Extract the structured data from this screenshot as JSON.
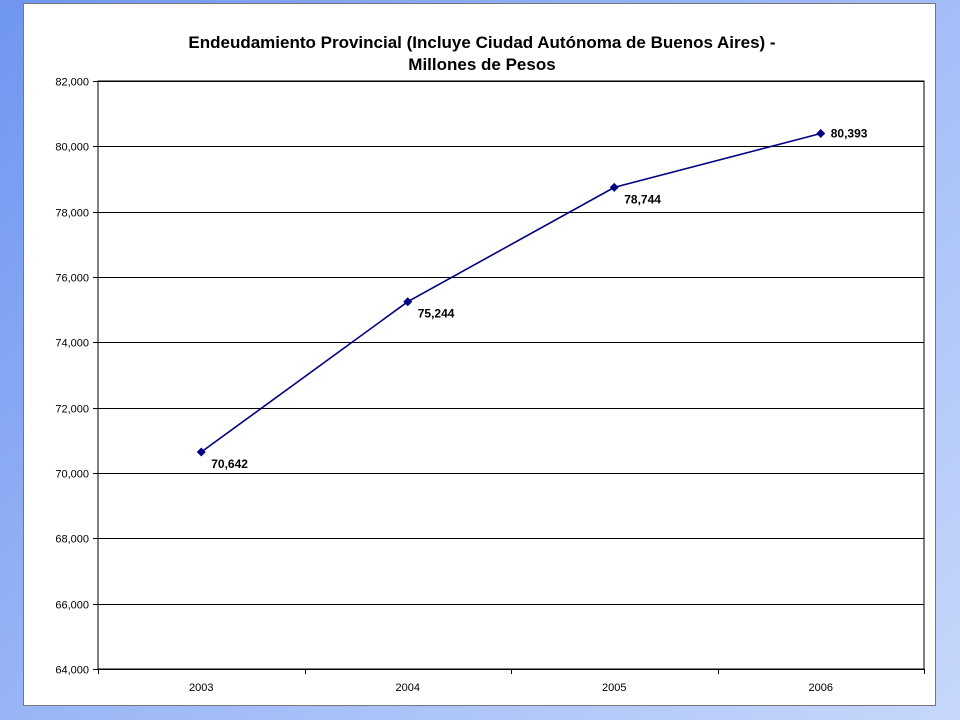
{
  "chart_data": {
    "type": "line",
    "title_line1": "Endeudamiento Provincial (Incluye Ciudad Autónoma de Buenos Aires) -",
    "title_line2": "Millones de Pesos",
    "categories": [
      "2003",
      "2004",
      "2005",
      "2006"
    ],
    "series": [
      {
        "values": [
          70642,
          75244,
          78744,
          80393
        ],
        "labels": [
          "70,642",
          "75,244",
          "78,744",
          "80,393"
        ],
        "color": "#000080"
      }
    ],
    "ylim": [
      64000,
      82000
    ],
    "y_ticks": [
      64000,
      66000,
      68000,
      70000,
      72000,
      74000,
      76000,
      78000,
      80000,
      82000
    ],
    "y_tick_labels": [
      "64,000",
      "66,000",
      "68,000",
      "70,000",
      "72,000",
      "74,000",
      "76,000",
      "78,000",
      "80,000",
      "82,000"
    ],
    "grid": true,
    "legend": "none"
  }
}
